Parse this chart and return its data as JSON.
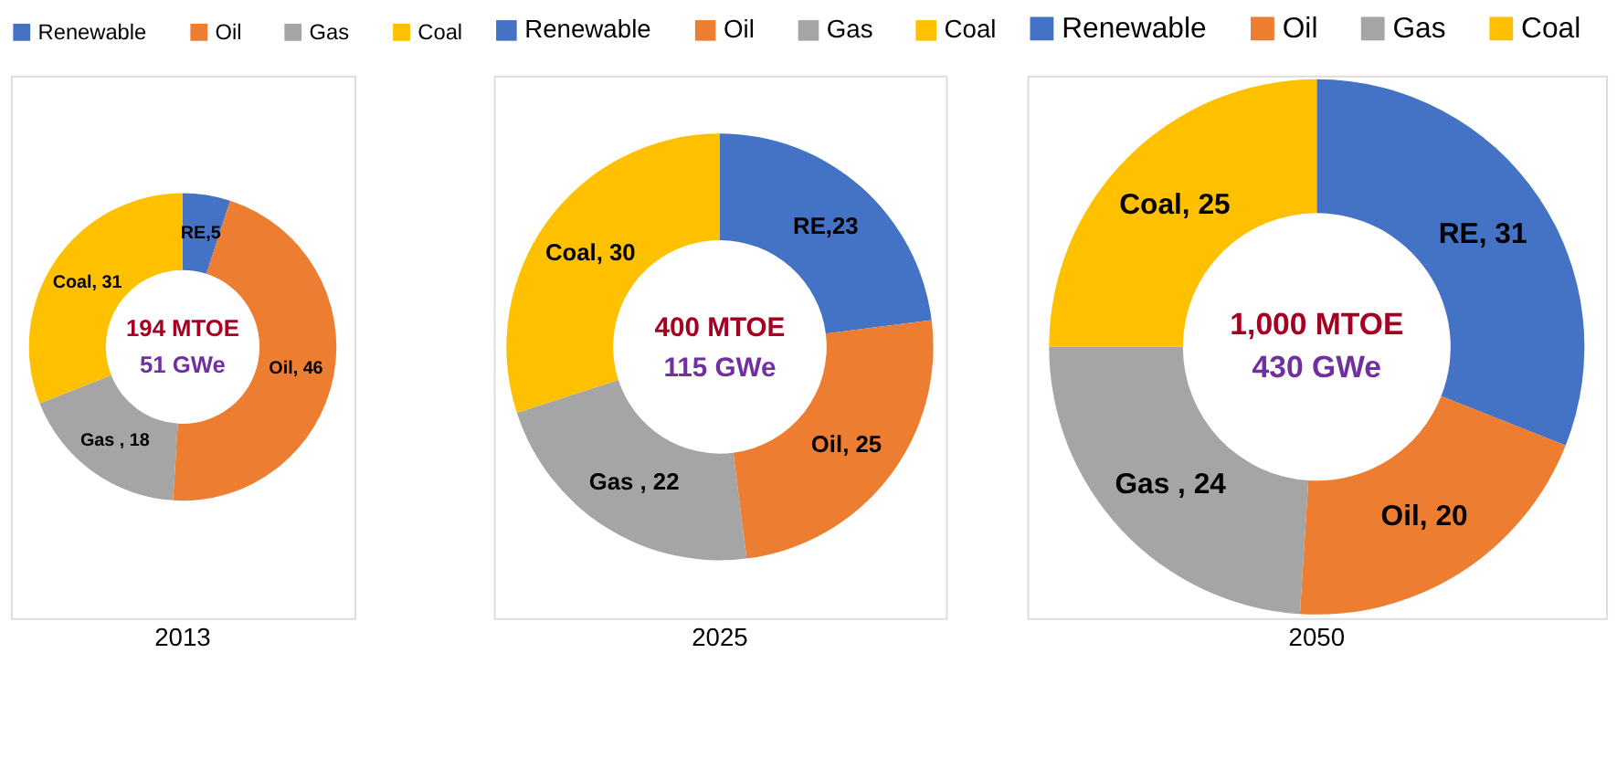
{
  "chart_data": [
    {
      "type": "donut",
      "title": "2013",
      "categories": [
        "Renewable",
        "Oil",
        "Gas",
        "Coal"
      ],
      "values": [
        5,
        46,
        18,
        31
      ],
      "colors": [
        "#4472c4",
        "#ed7d31",
        "#a5a5a5",
        "#ffc000"
      ],
      "value_labels": [
        "RE,5",
        "Oil, 46",
        "Gas , 18",
        "Coal, 31"
      ],
      "annotations": [
        "194 MTOE",
        "51 GWe"
      ],
      "legend": "top"
    },
    {
      "type": "donut",
      "title": "2025",
      "categories": [
        "Renewable",
        "Oil",
        "Gas",
        "Coal"
      ],
      "values": [
        23,
        25,
        22,
        30
      ],
      "colors": [
        "#4472c4",
        "#ed7d31",
        "#a5a5a5",
        "#ffc000"
      ],
      "value_labels": [
        "RE,23",
        "Oil, 25",
        "Gas , 22",
        "Coal, 30"
      ],
      "annotations": [
        "400 MTOE",
        "115 GWe"
      ],
      "legend": "top"
    },
    {
      "type": "donut",
      "title": "2050",
      "categories": [
        "Renewable",
        "Oil",
        "Gas",
        "Coal"
      ],
      "values": [
        31,
        20,
        24,
        25
      ],
      "colors": [
        "#4472c4",
        "#ed7d31",
        "#a5a5a5",
        "#ffc000"
      ],
      "value_labels": [
        "RE, 31",
        "Oil, 20",
        "Gas , 24",
        "Coal, 25"
      ],
      "annotations": [
        "1,000 MTOE",
        "430 GWe"
      ],
      "legend": "top"
    }
  ]
}
